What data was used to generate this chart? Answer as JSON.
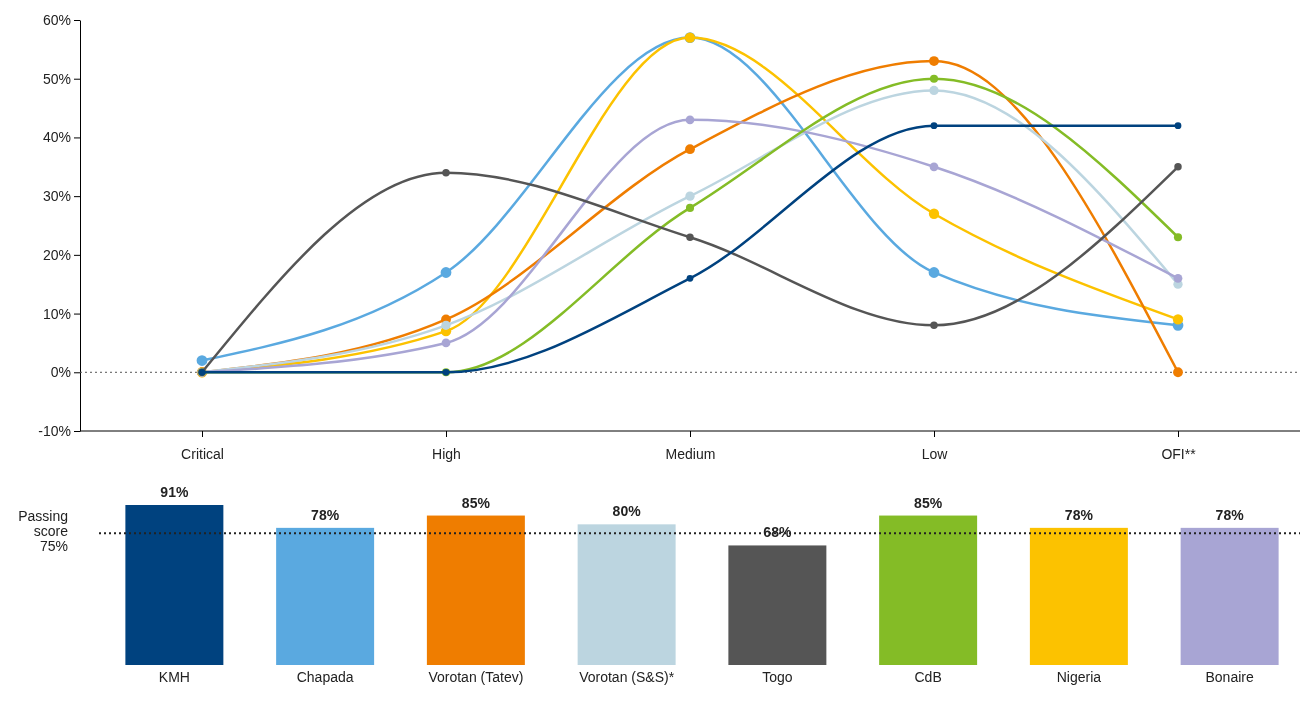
{
  "chart_data": [
    {
      "type": "line",
      "categories": [
        "Critical",
        "High",
        "Medium",
        "Low",
        "OFI**"
      ],
      "ylim": [
        -10,
        60
      ],
      "yticks": [
        {
          "value": -10,
          "label": "-10%"
        },
        {
          "value": 0,
          "label": "0%"
        },
        {
          "value": 10,
          "label": "10%"
        },
        {
          "value": 20,
          "label": "20%"
        },
        {
          "value": 30,
          "label": "30%"
        },
        {
          "value": 40,
          "label": "40%"
        },
        {
          "value": 50,
          "label": "50%"
        },
        {
          "value": 60,
          "label": "60%"
        }
      ],
      "grid": false,
      "marker": "circle",
      "line_style": "solid",
      "ref_lines": [
        {
          "axis": "y",
          "value": 0,
          "line_style": "dotted",
          "color": "#555555"
        }
      ],
      "series": [
        {
          "color": "#5aa9e0",
          "values": [
            2,
            17,
            57,
            17,
            8
          ]
        },
        {
          "color": "#fcc200",
          "values": [
            0,
            7,
            57,
            27,
            9
          ]
        },
        {
          "color": "#ef7d00",
          "values": [
            0,
            9,
            38,
            53,
            0
          ]
        },
        {
          "color": "#bcd5e0",
          "values": [
            0,
            8,
            30,
            48,
            15
          ]
        },
        {
          "color": "#a8a5d4",
          "values": [
            0,
            5,
            43,
            35,
            16
          ]
        },
        {
          "color": "#84bc26",
          "values": [
            0,
            0,
            28,
            50,
            23
          ]
        },
        {
          "color": "#555555",
          "values": [
            0,
            34,
            23,
            8,
            35
          ]
        },
        {
          "color": "#00427f",
          "values": [
            0,
            0,
            16,
            42,
            42
          ]
        }
      ]
    },
    {
      "type": "bar",
      "categories": [
        "KMH",
        "Chapada",
        "Vorotan (Tatev)",
        "Vorotan (S&S)*",
        "Togo",
        "CdB",
        "Nigeria",
        "Bonaire"
      ],
      "values": [
        91,
        78,
        85,
        80,
        68,
        85,
        78,
        78
      ],
      "colors": [
        "#00427f",
        "#5aa9e0",
        "#ef7d00",
        "#bcd5e0",
        "#555555",
        "#84bc26",
        "#fcc200",
        "#a8a5d4"
      ],
      "value_labels": [
        "91%",
        "78%",
        "85%",
        "80%",
        "68%",
        "85%",
        "78%",
        "78%"
      ],
      "tick_labels": "x",
      "ref_lines": [
        {
          "axis": "y",
          "value": 75,
          "label": "Passing score 75%",
          "line_style": "dotted",
          "color": "#222222"
        }
      ]
    }
  ]
}
